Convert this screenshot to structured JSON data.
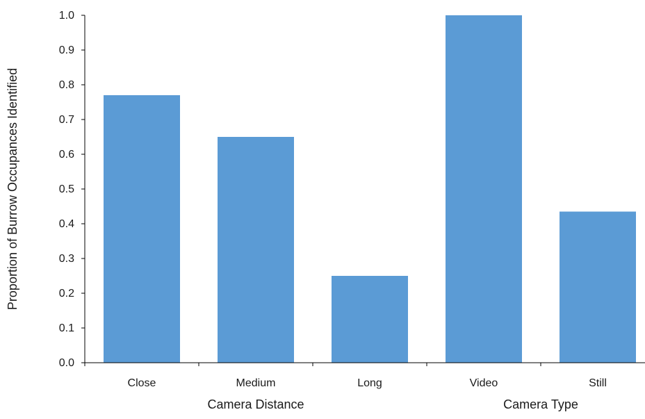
{
  "chart_data": {
    "type": "bar",
    "categories": [
      "Close",
      "Medium",
      "Long",
      "Video",
      "Still"
    ],
    "values": [
      0.77,
      0.65,
      0.25,
      1.0,
      0.435
    ],
    "groups": [
      {
        "label": "Camera Distance",
        "categories": [
          "Close",
          "Medium",
          "Long"
        ]
      },
      {
        "label": "Camera Type",
        "categories": [
          "Video",
          "Still"
        ]
      }
    ],
    "ylabel": "Proportion of Burrow Occupances Identified",
    "xlabel": "",
    "ylim": [
      0,
      1.0
    ],
    "yticks": [
      "0.0",
      "0.1",
      "0.2",
      "0.3",
      "0.4",
      "0.5",
      "0.6",
      "0.7",
      "0.8",
      "0.9",
      "1.0"
    ],
    "bar_color": "#5b9bd5",
    "axis_color": "#000000",
    "grid": false,
    "legend": "none"
  }
}
